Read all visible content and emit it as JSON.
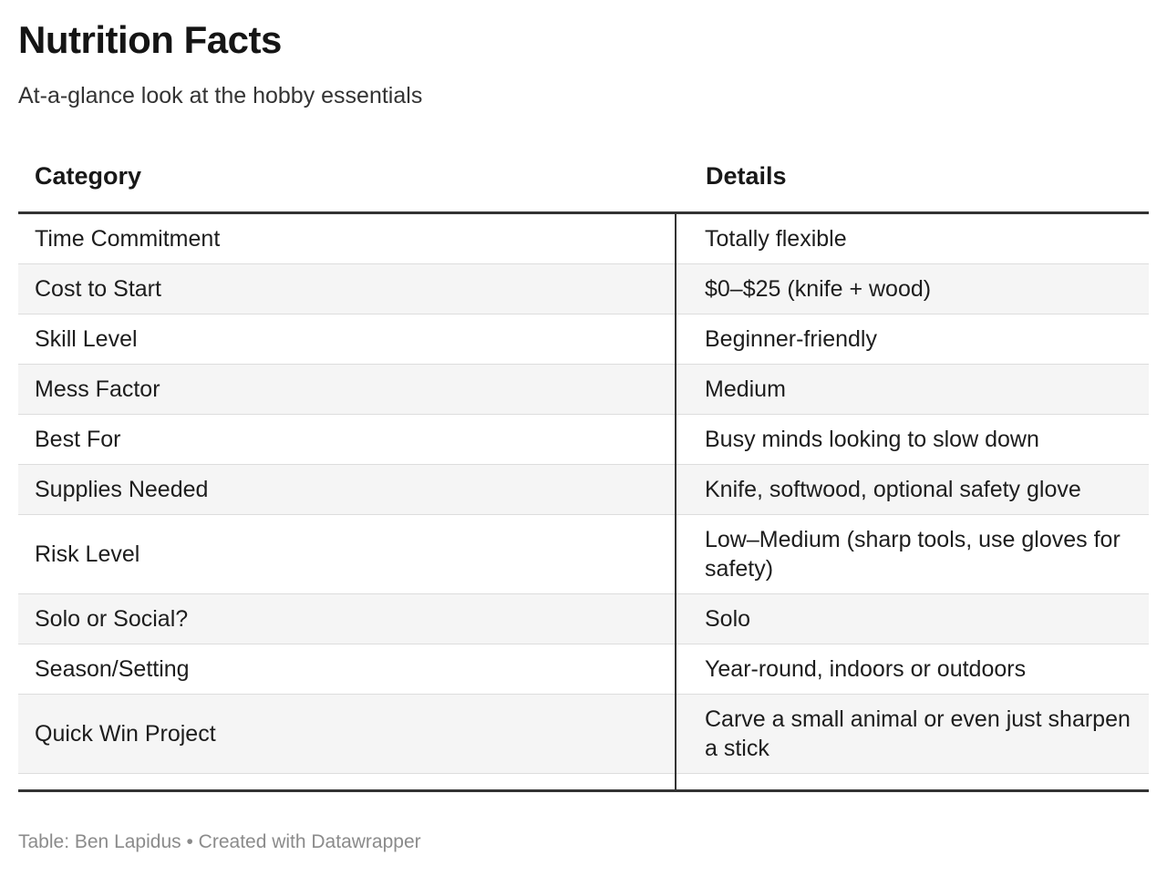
{
  "header": {
    "title": "Nutrition Facts",
    "subtitle": "At-a-glance look at the hobby essentials"
  },
  "table": {
    "columns": [
      "Category",
      "Details"
    ],
    "rows": [
      {
        "category": "Time Commitment",
        "details": "Totally flexible"
      },
      {
        "category": "Cost to Start",
        "details": "$0–$25 (knife + wood)"
      },
      {
        "category": "Skill Level",
        "details": "Beginner-friendly"
      },
      {
        "category": "Mess Factor",
        "details": "Medium"
      },
      {
        "category": "Best For",
        "details": "Busy minds looking to slow down"
      },
      {
        "category": "Supplies Needed",
        "details": "Knife, softwood, optional safety glove"
      },
      {
        "category": "Risk Level",
        "details": "Low–Medium (sharp tools, use gloves for safety)"
      },
      {
        "category": "Solo or Social?",
        "details": "Solo"
      },
      {
        "category": "Season/Setting",
        "details": "Year-round, indoors or outdoors"
      },
      {
        "category": "Quick Win Project",
        "details": "Carve a small animal or even just sharpen a stick"
      }
    ]
  },
  "footer": {
    "attribution_label": "Table: Ben Lapidus",
    "separator": " • ",
    "credit_link": "Created with Datawrapper"
  },
  "colors": {
    "background": "#ffffff",
    "title_text": "#151515",
    "body_text": "#1d1d1d",
    "subtitle_text": "#333333",
    "heavy_rule": "#333333",
    "row_separator": "#dddddd",
    "row_stripe": "#f5f5f5",
    "footer_text": "#8b8b8b"
  },
  "chart_data": {
    "type": "table",
    "title": "Nutrition Facts",
    "subtitle": "At-a-glance look at the hobby essentials",
    "columns": [
      "Category",
      "Details"
    ],
    "rows": [
      [
        "Time Commitment",
        "Totally flexible"
      ],
      [
        "Cost to Start",
        "$0–$25 (knife + wood)"
      ],
      [
        "Skill Level",
        "Beginner-friendly"
      ],
      [
        "Mess Factor",
        "Medium"
      ],
      [
        "Best For",
        "Busy minds looking to slow down"
      ],
      [
        "Supplies Needed",
        "Knife, softwood, optional safety glove"
      ],
      [
        "Risk Level",
        "Low–Medium (sharp tools, use gloves for safety)"
      ],
      [
        "Solo or Social?",
        "Solo"
      ],
      [
        "Season/Setting",
        "Year-round, indoors or outdoors"
      ],
      [
        "Quick Win Project",
        "Carve a small animal or even just sharpen a stick"
      ]
    ],
    "layout_hints": {
      "striped_rows": true,
      "stripe_on": "even",
      "column_divider": true,
      "heavy_rule_under_header": true,
      "heavy_rule_under_body": true
    },
    "credit": "Table: Ben Lapidus • Created with Datawrapper"
  }
}
